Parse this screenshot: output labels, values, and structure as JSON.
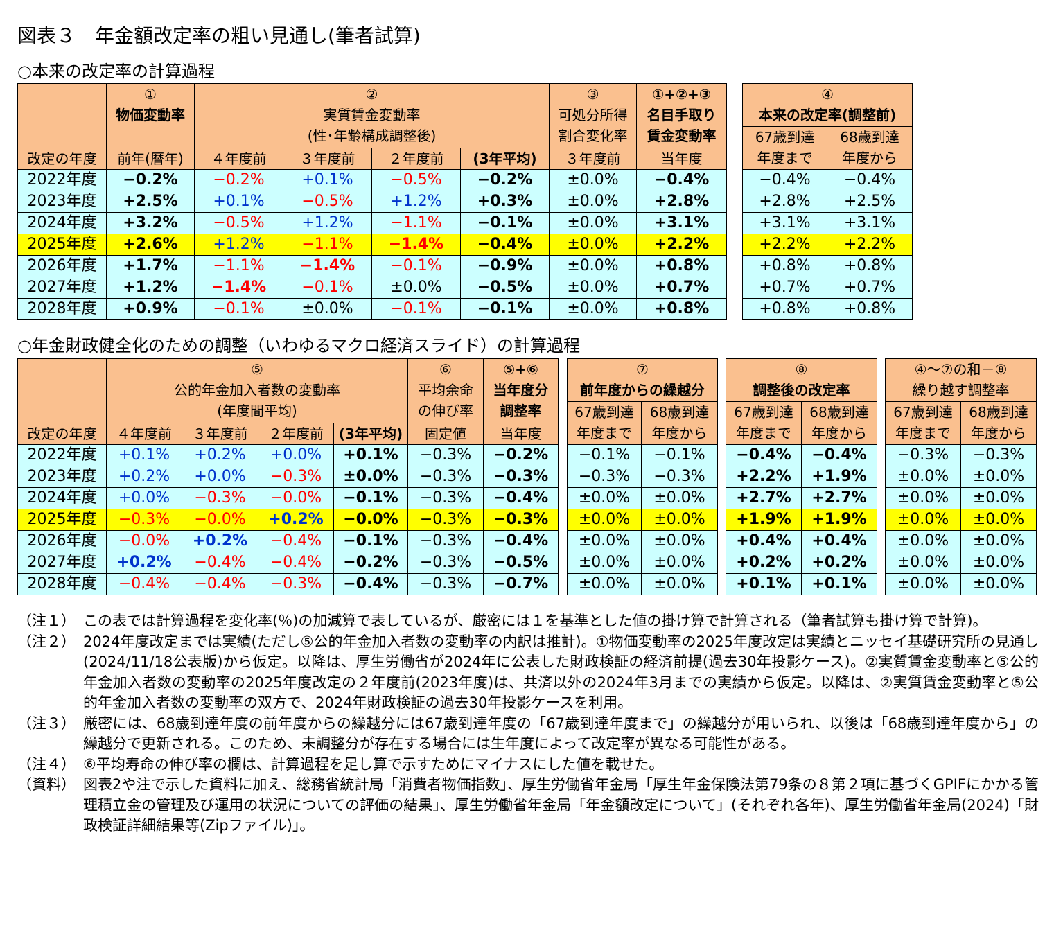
{
  "title": "図表３　年金額改定率の粗い見通し(筆者試算)",
  "table1": {
    "heading": "○本来の改定率の計算過程",
    "header": [
      "改定の年度",
      "①",
      "物価変動率",
      "前年(暦年)",
      "②",
      "実質賃金変動率",
      "(性･年齢構成調整後)",
      "４年度前",
      "３年度前",
      "２年度前",
      "(3年平均)",
      "③",
      "可処分所得",
      "割合変化率",
      "３年度前",
      "①+②+③",
      "名目手取り",
      "賃金変動率",
      "当年度",
      "④",
      "本来の改定率(調整前)",
      "67歳到達",
      "年度まで",
      "68歳到達",
      "年度から"
    ],
    "rows": [
      [
        "2022年度",
        "−0.2%",
        "−0.2%",
        "+0.1%",
        "−0.5%",
        "−0.2%",
        "±0.0%",
        "−0.4%",
        "−0.4%",
        "−0.4%"
      ],
      [
        "2023年度",
        "+2.5%",
        "+0.1%",
        "−0.5%",
        "+1.2%",
        "+0.3%",
        "±0.0%",
        "+2.8%",
        "+2.8%",
        "+2.5%"
      ],
      [
        "2024年度",
        "+3.2%",
        "−0.5%",
        "+1.2%",
        "−1.1%",
        "−0.1%",
        "±0.0%",
        "+3.1%",
        "+3.1%",
        "+3.1%"
      ],
      [
        "2025年度",
        "+2.6%",
        "+1.2%",
        "−1.1%",
        "−1.4%",
        "−0.4%",
        "±0.0%",
        "+2.2%",
        "+2.2%",
        "+2.2%"
      ],
      [
        "2026年度",
        "+1.7%",
        "−1.1%",
        "−1.4%",
        "−0.1%",
        "−0.9%",
        "±0.0%",
        "+0.8%",
        "+0.8%",
        "+0.8%"
      ],
      [
        "2027年度",
        "+1.2%",
        "−1.4%",
        "−0.1%",
        "±0.0%",
        "−0.5%",
        "±0.0%",
        "+0.7%",
        "+0.7%",
        "+0.7%"
      ],
      [
        "2028年度",
        "+0.9%",
        "−0.1%",
        "±0.0%",
        "−0.1%",
        "−0.1%",
        "±0.0%",
        "+0.8%",
        "+0.8%",
        "+0.8%"
      ]
    ]
  },
  "table2": {
    "heading": "○年金財政健全化のための調整（いわゆるマクロ経済スライド）の計算過程",
    "header": [
      "改定の年度",
      "⑤",
      "公的年金加入者数の変動率",
      "(年度間平均)",
      "４年度前",
      "３年度前",
      "２年度前",
      "(3年平均)",
      "⑥",
      "平均余命",
      "の伸び率",
      "固定値",
      "⑤+⑥",
      "当年度分",
      "調整率",
      "当年度",
      "⑦",
      "前年度からの繰越分",
      "67歳到達",
      "年度まで",
      "68歳到達",
      "年度から",
      "⑧",
      "調整後の改定率",
      "67歳到達",
      "年度まで",
      "68歳到達",
      "年度から",
      "④～⑦の和－⑧",
      "繰り越す調整率",
      "67歳到達",
      "年度まで",
      "68歳到達",
      "年度から"
    ],
    "rows": [
      [
        "2022年度",
        "+0.1%",
        "+0.2%",
        "+0.0%",
        "+0.1%",
        "−0.3%",
        "−0.2%",
        "−0.1%",
        "−0.1%",
        "−0.4%",
        "−0.4%",
        "−0.3%",
        "−0.3%"
      ],
      [
        "2023年度",
        "+0.2%",
        "+0.0%",
        "−0.3%",
        "±0.0%",
        "−0.3%",
        "−0.3%",
        "−0.3%",
        "−0.3%",
        "+2.2%",
        "+1.9%",
        "±0.0%",
        "±0.0%"
      ],
      [
        "2024年度",
        "+0.0%",
        "−0.3%",
        "−0.0%",
        "−0.1%",
        "−0.3%",
        "−0.4%",
        "±0.0%",
        "±0.0%",
        "+2.7%",
        "+2.7%",
        "±0.0%",
        "±0.0%"
      ],
      [
        "2025年度",
        "−0.3%",
        "−0.0%",
        "+0.2%",
        "−0.0%",
        "−0.3%",
        "−0.3%",
        "±0.0%",
        "±0.0%",
        "+1.9%",
        "+1.9%",
        "±0.0%",
        "±0.0%"
      ],
      [
        "2026年度",
        "−0.0%",
        "+0.2%",
        "−0.4%",
        "−0.1%",
        "−0.3%",
        "−0.4%",
        "±0.0%",
        "±0.0%",
        "+0.4%",
        "+0.4%",
        "±0.0%",
        "±0.0%"
      ],
      [
        "2027年度",
        "+0.2%",
        "−0.4%",
        "−0.4%",
        "−0.2%",
        "−0.3%",
        "−0.5%",
        "±0.0%",
        "±0.0%",
        "+0.2%",
        "+0.2%",
        "±0.0%",
        "±0.0%"
      ],
      [
        "2028年度",
        "−0.4%",
        "−0.4%",
        "−0.3%",
        "−0.4%",
        "−0.3%",
        "−0.7%",
        "±0.0%",
        "±0.0%",
        "+0.1%",
        "+0.1%",
        "±0.0%",
        "±0.0%"
      ]
    ]
  },
  "notes": [
    {
      "label": "（注１）",
      "text": "この表では計算過程を変化率(％)の加減算で表しているが、厳密には１を基準とした値の掛け算で計算される（筆者試算も掛け算で計算)。"
    },
    {
      "label": "（注２）",
      "text": "2024年度改定までは実績(ただし⑤公的年金加入者数の変動率の内訳は推計)。①物価変動率の2025年度改定は実績とニッセイ基礎研究所の見通し(2024/11/18公表版)から仮定。以降は、厚生労働省が2024年に公表した財政検証の経済前提(過去30年投影ケース)。②実質賃金変動率と⑤公的年金加入者数の変動率の2025年度改定の２年度前(2023年度)は、共済以外の2024年3月までの実績から仮定。以降は、②実質賃金変動率と⑤公的年金加入者数の変動率の双方で、2024年財政検証の過去30年投影ケースを利用。"
    },
    {
      "label": "（注３）",
      "text": "厳密には、68歳到達年度の前年度からの繰越分には67歳到達年度の「67歳到達年度まで」の繰越分が用いられ、以後は「68歳到達年度から」の繰越分で更新される。このため、未調整分が存在する場合には生年度によって改定率が異なる可能性がある。"
    },
    {
      "label": "（注４）",
      "text": "⑥平均寿命の伸び率の欄は、計算過程を足し算で示すためにマイナスにした値を載せた。"
    },
    {
      "label": "（資料）",
      "text": "図表2や注で示した資料に加え、総務省統計局「消費者物価指数」、厚生労働省年金局「厚生年金保険法第79条の８第２項に基づくGPIFにかかる管理積立金の管理及び運用の状況についての評価の結果」、厚生労働省年金局「年金額改定について」(それぞれ各年)、厚生労働省年金局(2024)「財政検証詳細結果等(Zipファイル)」。"
    }
  ]
}
